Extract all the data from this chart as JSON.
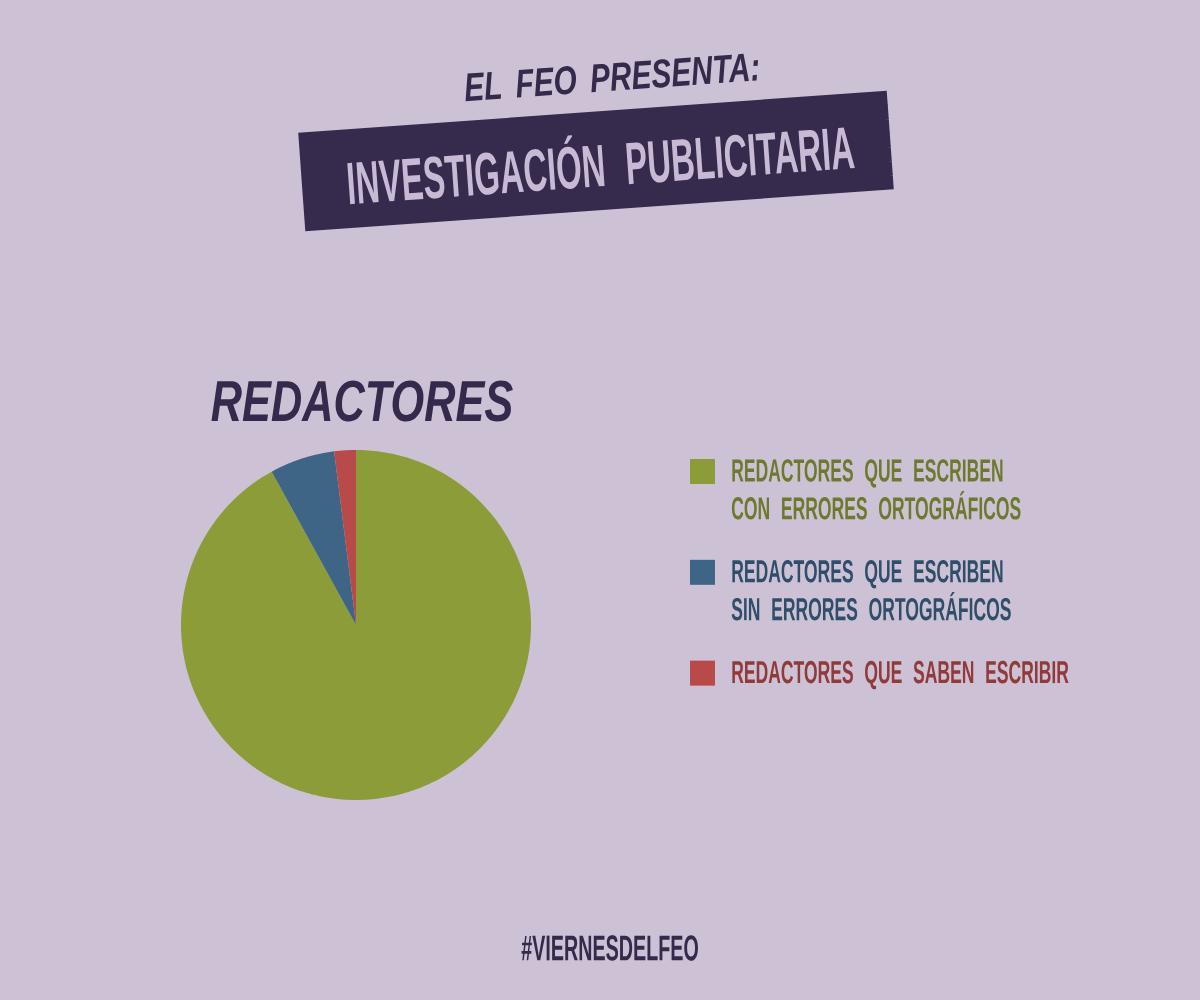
{
  "chart_data": {
    "type": "pie",
    "title": "INVESTIGACIÓN PUBLICITARIA",
    "subtitle": "REDACTORES",
    "categories": [
      "REDACTORES QUE ESCRIBEN CON ERRORES ORTOGRÁFICOS",
      "REDACTORES QUE ESCRIBEN SIN ERRORES ORTOGRÁFICOS",
      "REDACTORES QUE SABEN ESCRIBIR"
    ],
    "values": [
      92,
      6,
      2
    ],
    "colors": [
      "#8c9c38",
      "#3e6486",
      "#b84a4a"
    ],
    "legend": "right",
    "annotations": [
      "EL FEO PRESENTA:",
      "#VIERNESDELFEO"
    ]
  }
}
